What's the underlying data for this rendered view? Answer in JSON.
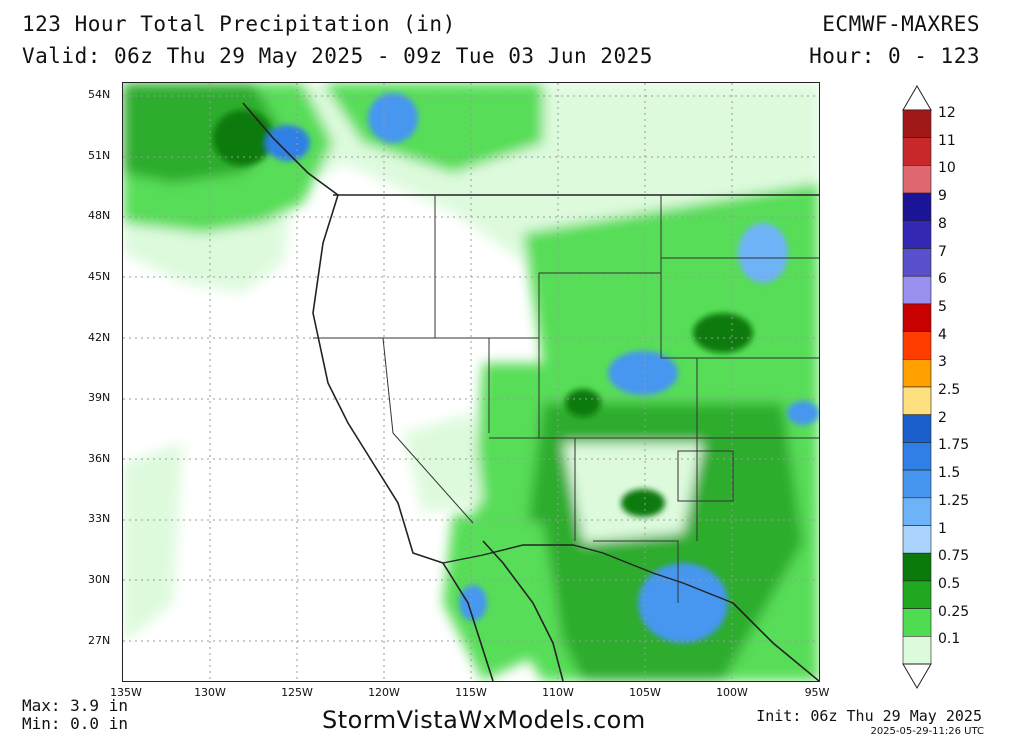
{
  "header": {
    "title": "123 Hour Total Precipitation (in)",
    "valid": "Valid: 06z Thu 29 May 2025 - 09z Tue 03 Jun 2025",
    "model": "ECMWF-MAXRES",
    "hour": "Hour: 0 - 123"
  },
  "map": {
    "lat_labels": [
      "54N",
      "51N",
      "48N",
      "45N",
      "42N",
      "39N",
      "36N",
      "33N",
      "30N",
      "27N"
    ],
    "lon_labels": [
      "135W",
      "130W",
      "125W",
      "120W",
      "115W",
      "110W",
      "105W",
      "100W",
      "95W"
    ],
    "extent": {
      "lon": [
        -135,
        -95
      ],
      "lat": [
        25,
        55
      ]
    }
  },
  "legend": {
    "units": "in",
    "levels": [
      "12",
      "11",
      "10",
      "9",
      "8",
      "7",
      "6",
      "5",
      "4",
      "3",
      "2.5",
      "2",
      "1.75",
      "1.5",
      "1.25",
      "1",
      "0.75",
      "0.5",
      "0.25",
      "0.1"
    ],
    "colors": [
      "#a01818",
      "#c8282a",
      "#e06870",
      "#1c1496",
      "#3228b4",
      "#5a50cc",
      "#9a90f0",
      "#c80000",
      "#ff3c00",
      "#ffa000",
      "#ffe080",
      "#1a5fcc",
      "#2f7fe6",
      "#4696f0",
      "#6eb2f7",
      "#aad4fb",
      "#0a7a0a",
      "#20a820",
      "#50dc50",
      "#dcfadc"
    ]
  },
  "footer": {
    "max": "Max: 3.9 in",
    "min": "Min: 0.0 in",
    "site": "StormVistaWxModels.com",
    "init": "Init: 06z Thu 29 May 2025",
    "stamp": "2025-05-29-11:26 UTC"
  }
}
